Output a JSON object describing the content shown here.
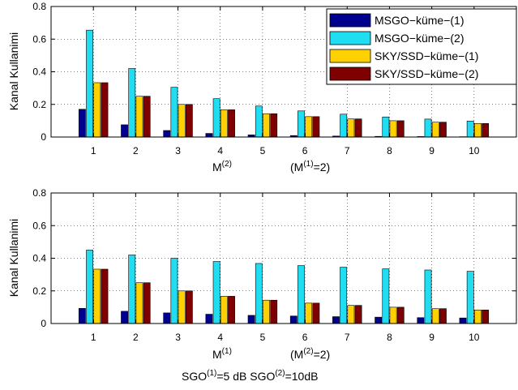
{
  "colors": {
    "msgo1": "#00008f",
    "msgo2": "#20ddf2",
    "sky1": "#ffd100",
    "sky2": "#7f0000"
  },
  "legend": [
    "MSGO−küme−(1)",
    "MSGO−küme−(2)",
    "SKY/SSD−küme−(1)",
    "SKY/SSD−küme−(2)"
  ],
  "chart_data": [
    {
      "type": "bar",
      "ylabel": "Kanal Kullanimi",
      "xlabel": {
        "main": "M",
        "main_sup": "(2)",
        "note": "(M",
        "note_sup": "(1)",
        "note_tail": "=2)"
      },
      "categories": [
        "1",
        "2",
        "3",
        "4",
        "5",
        "6",
        "7",
        "8",
        "9",
        "10"
      ],
      "ylim": [
        0,
        0.8
      ],
      "yticks": [
        "0",
        "0.2",
        "0.4",
        "0.6",
        "0.8"
      ],
      "grid": true,
      "legend_position": "top-right",
      "series": [
        {
          "name": "MSGO−küme−(1)",
          "values": [
            0.17,
            0.075,
            0.04,
            0.022,
            0.013,
            0.009,
            0.006,
            0.004,
            0.003,
            0.002
          ]
        },
        {
          "name": "MSGO−küme−(2)",
          "values": [
            0.655,
            0.42,
            0.305,
            0.235,
            0.19,
            0.16,
            0.14,
            0.123,
            0.11,
            0.098
          ]
        },
        {
          "name": "SKY/SSD−küme−(1)",
          "values": [
            0.333,
            0.25,
            0.2,
            0.167,
            0.143,
            0.125,
            0.111,
            0.1,
            0.091,
            0.083
          ]
        },
        {
          "name": "SKY/SSD−küme−(2)",
          "values": [
            0.333,
            0.25,
            0.2,
            0.167,
            0.143,
            0.125,
            0.111,
            0.1,
            0.091,
            0.083
          ]
        }
      ]
    },
    {
      "type": "bar",
      "ylabel": "Kanal Kullanimi",
      "xlabel": {
        "main": "M",
        "main_sup": "(1)",
        "note": "(M",
        "note_sup": "(2)",
        "note_tail": "=2)"
      },
      "caption": {
        "a": "SGO",
        "a_sup": "(1)",
        "a_tail": "=5 dB SGO",
        "b_sup": "(2)",
        "b_tail": "=10dB"
      },
      "categories": [
        "1",
        "2",
        "3",
        "4",
        "5",
        "6",
        "7",
        "8",
        "9",
        "10"
      ],
      "ylim": [
        0,
        0.8
      ],
      "yticks": [
        "0",
        "0.2",
        "0.4",
        "0.6",
        "0.8"
      ],
      "grid": true,
      "series": [
        {
          "name": "MSGO−küme−(1)",
          "values": [
            0.093,
            0.075,
            0.065,
            0.057,
            0.05,
            0.046,
            0.042,
            0.039,
            0.036,
            0.034
          ]
        },
        {
          "name": "MSGO−küme−(2)",
          "values": [
            0.45,
            0.42,
            0.4,
            0.38,
            0.368,
            0.355,
            0.345,
            0.335,
            0.328,
            0.32
          ]
        },
        {
          "name": "SKY/SSD−küme−(1)",
          "values": [
            0.333,
            0.25,
            0.2,
            0.167,
            0.143,
            0.125,
            0.111,
            0.1,
            0.091,
            0.083
          ]
        },
        {
          "name": "SKY/SSD−küme−(2)",
          "values": [
            0.333,
            0.25,
            0.2,
            0.167,
            0.143,
            0.125,
            0.111,
            0.1,
            0.091,
            0.083
          ]
        }
      ]
    }
  ]
}
